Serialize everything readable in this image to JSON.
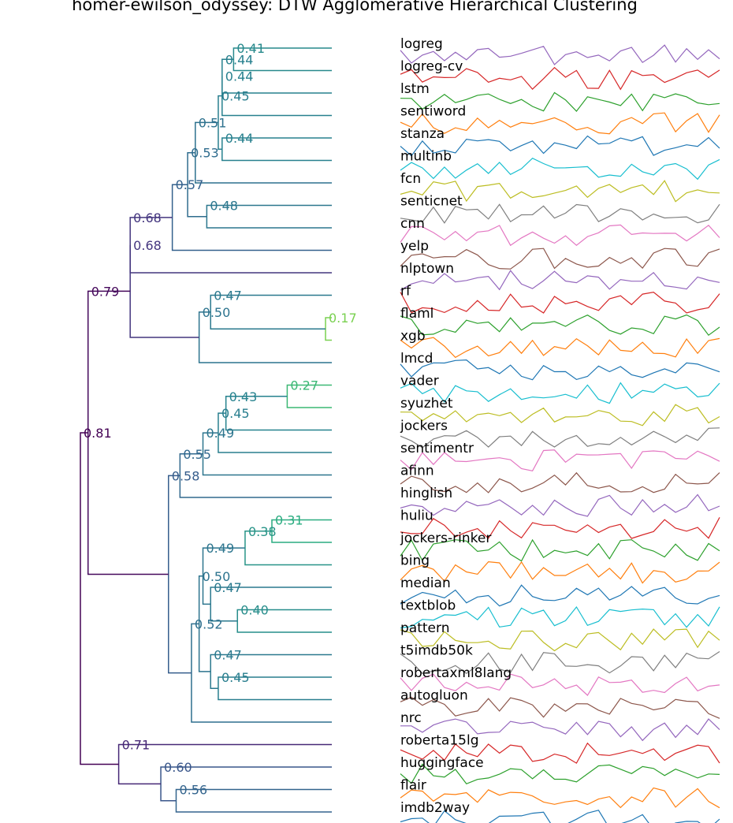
{
  "chart_data": {
    "type": "dendrogram",
    "title": "homer-ewilson_odyssey: DTW Agglomerative Hierarchical Clustering",
    "leaves": [
      "logreg",
      "logreg-cv",
      "lstm",
      "sentiword",
      "stanza",
      "multinb",
      "fcn",
      "senticnet",
      "cnn",
      "yelp",
      "nlptown",
      "rf",
      "flaml",
      "xgb",
      "lmcd",
      "vader",
      "syuzhet",
      "jockers",
      "sentimentr",
      "afinn",
      "hinglish",
      "huliu",
      "jockers-rinker",
      "bing",
      "median",
      "textblob",
      "pattern",
      "t5imdb50k",
      "robertaxml8lang",
      "autogluon",
      "nrc",
      "roberta15lg",
      "huggingface",
      "flair",
      "imdb2way"
    ],
    "series_colors": [
      "#9467bd",
      "#d62728",
      "#2ca02c",
      "#ff7f0e",
      "#1f77b4",
      "#17becf",
      "#bcbd22",
      "#7f7f7f",
      "#e377c2",
      "#8c564b"
    ],
    "merges": [
      {
        "id": "n1",
        "a": 0,
        "b": 1,
        "h": 0.41,
        "label": "0.41"
      },
      {
        "id": "n2",
        "a": "n1",
        "b": 2,
        "h": 0.44,
        "label": "0.44"
      },
      {
        "id": "n3",
        "a": "n2",
        "b": 3,
        "h": 0.44,
        "label": "0.44"
      },
      {
        "id": "n4",
        "a": 4,
        "b": 5,
        "h": 0.44,
        "label": "0.44"
      },
      {
        "id": "n5",
        "a": "n3",
        "b": "n4",
        "h": 0.45,
        "label": "0.45"
      },
      {
        "id": "n6",
        "a": "n5",
        "b": 6,
        "h": 0.51,
        "label": "0.51"
      },
      {
        "id": "n7",
        "a": 7,
        "b": 8,
        "h": 0.48,
        "label": "0.48"
      },
      {
        "id": "n8",
        "a": "n6",
        "b": "n7",
        "h": 0.53,
        "label": "0.53"
      },
      {
        "id": "n9",
        "a": "n8",
        "b": 9,
        "h": 0.57,
        "label": "0.57"
      },
      {
        "id": "n10",
        "a": "n9",
        "b": 10,
        "h": 0.68,
        "label": "0.68"
      },
      {
        "id": "n11",
        "a": 12,
        "b": 13,
        "h": 0.17,
        "label": "0.17"
      },
      {
        "id": "n12",
        "a": 11,
        "b": "n11",
        "h": 0.47,
        "label": "0.47"
      },
      {
        "id": "n13",
        "a": "n12",
        "b": 14,
        "h": 0.5,
        "label": "0.50"
      },
      {
        "id": "n14",
        "a": "n10",
        "b": "n13",
        "h": 0.68,
        "label": "0.68"
      },
      {
        "id": "n15",
        "a": 15,
        "b": 16,
        "h": 0.27,
        "label": "0.27"
      },
      {
        "id": "n16",
        "a": "n15",
        "b": 17,
        "h": 0.43,
        "label": "0.43"
      },
      {
        "id": "n17",
        "a": "n16",
        "b": 18,
        "h": 0.45,
        "label": "0.45"
      },
      {
        "id": "n18",
        "a": "n17",
        "b": 19,
        "h": 0.49,
        "label": "0.49"
      },
      {
        "id": "n19",
        "a": "n18",
        "b": 20,
        "h": 0.55,
        "label": "0.55"
      },
      {
        "id": "n20",
        "a": 21,
        "b": 22,
        "h": 0.31,
        "label": "0.31"
      },
      {
        "id": "n21",
        "a": "n20",
        "b": 23,
        "h": 0.38,
        "label": "0.38"
      },
      {
        "id": "n22",
        "a": 25,
        "b": 26,
        "h": 0.4,
        "label": "0.40"
      },
      {
        "id": "n23",
        "a": 24,
        "b": "n22",
        "h": 0.47,
        "label": "0.47"
      },
      {
        "id": "n24",
        "a": "n21",
        "b": "n23",
        "h": 0.49,
        "label": "0.49"
      },
      {
        "id": "n25",
        "a": 28,
        "b": 29,
        "h": 0.45,
        "label": "0.45"
      },
      {
        "id": "n26",
        "a": 27,
        "b": "n25",
        "h": 0.47,
        "label": "0.47"
      },
      {
        "id": "n27",
        "a": "n24",
        "b": "n26",
        "h": 0.5,
        "label": "0.50"
      },
      {
        "id": "n28",
        "a": "n27",
        "b": 30,
        "h": 0.52,
        "label": "0.52"
      },
      {
        "id": "n29",
        "a": "n19",
        "b": "n28",
        "h": 0.58,
        "label": "0.58"
      },
      {
        "id": "n30",
        "a": "n14",
        "b": "n29",
        "h": 0.79,
        "label": "0.79"
      },
      {
        "id": "n31",
        "a": 33,
        "b": 34,
        "h": 0.56,
        "label": "0.56"
      },
      {
        "id": "n32",
        "a": 32,
        "b": "n31",
        "h": 0.6,
        "label": "0.60"
      },
      {
        "id": "n33",
        "a": 31,
        "b": "n32",
        "h": 0.71,
        "label": "0.71"
      },
      {
        "id": "n34",
        "a": "n30",
        "b": "n33",
        "h": 0.81,
        "label": "0.81"
      }
    ]
  }
}
